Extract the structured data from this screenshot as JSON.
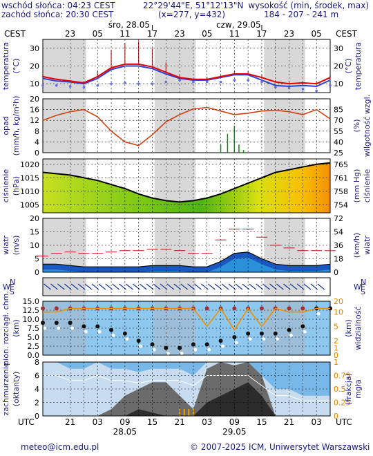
{
  "header": {
    "sunrise": "wschód słońca: 04:23 CEST",
    "sunset": "zachód słońca: 20:30 CEST",
    "coords": "22°29'44\"E, 51°12'13\"N",
    "grid": "(x=277, y=432)",
    "elev_label": "wysokość (min, środek, max)",
    "elev_values": "184 - 207 - 241 m"
  },
  "timezones": {
    "top": "CEST",
    "bottom": "UTC"
  },
  "dates_top": [
    {
      "label": "śro, 28.05",
      "hour": 12
    },
    {
      "label": "czw, 29.05",
      "hour": 36
    }
  ],
  "dates_bottom": [
    {
      "label": "28.05",
      "hour": 12
    },
    {
      "label": "29.05",
      "hour": 36
    }
  ],
  "hours_top": [
    "23",
    "05",
    "11",
    "17",
    "23",
    "05",
    "11",
    "17",
    "23",
    "05"
  ],
  "hours_bottom": [
    "21",
    "03",
    "09",
    "15",
    "21",
    "03",
    "09",
    "15",
    "21",
    "03"
  ],
  "footer": {
    "email": "meteo@icm.edu.pl",
    "copyright": "© 2007-2025 ICM, Uniwersytet Warszawski"
  },
  "colors": {
    "temp": "#e00000",
    "dew": "#2020c0",
    "humidity": "#d04010",
    "precip": "#009000",
    "text": "#1a1a80",
    "night_band": "#d8d8d8"
  },
  "chart_data": [
    {
      "type": "line",
      "name": "temperature",
      "ylabel": "temperatura (°C)",
      "ylim": [
        5,
        35
      ],
      "yticks": [
        10,
        20,
        30
      ],
      "x": [
        -6,
        -3,
        0,
        3,
        6,
        9,
        12,
        15,
        18,
        21,
        24,
        27,
        30,
        33,
        36,
        39,
        42,
        45,
        48,
        51,
        54,
        57
      ],
      "series": [
        {
          "values": [
            14,
            12.5,
            11.5,
            10.5,
            14,
            19,
            21,
            21,
            19.5,
            16.5,
            13.5,
            12.5,
            12.5,
            14,
            15.5,
            15.5,
            13.5,
            11,
            10,
            10.5,
            10,
            13.5
          ]
        },
        {
          "values": [
            13,
            11.5,
            11,
            10,
            13,
            18,
            20,
            20,
            18.5,
            15.5,
            13,
            12,
            12,
            13.5,
            15,
            15,
            12,
            9,
            8.5,
            9,
            8.5,
            12
          ]
        }
      ],
      "dew": [
        9,
        9,
        8.5,
        8,
        9,
        10,
        10.5,
        10,
        10,
        11,
        12,
        11,
        11,
        11,
        12,
        12,
        11,
        8,
        7.5,
        7,
        6,
        9
      ],
      "max": [
        15,
        13,
        12,
        11,
        17,
        29,
        33,
        34,
        30,
        22,
        15,
        13,
        14,
        15,
        17,
        17,
        15,
        12,
        11,
        11,
        11,
        15
      ]
    },
    {
      "type": "line",
      "name": "precip-humidity",
      "ylabel": "opad (mm/h, kg/m²h)",
      "ylabel_right": "wilgotność wzgl. (%)",
      "ylim": [
        0,
        20
      ],
      "yticks": [
        0,
        4,
        8,
        12,
        16,
        20
      ],
      "yticks_right": [
        25,
        40,
        55,
        70,
        85
      ],
      "x": [
        -6,
        -3,
        0,
        3,
        6,
        9,
        12,
        15,
        18,
        21,
        24,
        27,
        30,
        33,
        36,
        39,
        42,
        45,
        48,
        51,
        54,
        57
      ],
      "humidity": [
        70,
        77,
        82,
        85,
        75,
        55,
        40,
        35,
        50,
        68,
        78,
        86,
        88,
        83,
        78,
        80,
        83,
        84,
        82,
        78,
        85,
        72
      ],
      "precip_bars": [
        {
          "x": 33,
          "v": 3
        },
        {
          "x": 34.5,
          "v": 7
        },
        {
          "x": 36,
          "v": 10
        },
        {
          "x": 37,
          "v": 3
        },
        {
          "x": 38,
          "v": 1
        }
      ]
    },
    {
      "type": "area",
      "name": "pressure",
      "ylabel": "ciśnienie (hPa)",
      "ylabel_right": "(mm Hg)",
      "ylim": [
        1002,
        1022
      ],
      "yticks": [
        1005,
        1010,
        1015,
        1020
      ],
      "yticks_right": [
        754,
        758,
        761,
        765
      ],
      "x": [
        -6,
        -3,
        0,
        3,
        6,
        9,
        12,
        15,
        18,
        21,
        24,
        27,
        30,
        33,
        36,
        39,
        42,
        45,
        48,
        51,
        54,
        57
      ],
      "values": [
        1017,
        1016.5,
        1016,
        1015,
        1014,
        1012.5,
        1011,
        1009,
        1007.5,
        1006.5,
        1006,
        1006.5,
        1007.5,
        1009,
        1011,
        1013,
        1015,
        1017,
        1018,
        1019,
        1020,
        1020.5
      ]
    },
    {
      "type": "area",
      "name": "wind",
      "ylabel": "wiatr (m/s)",
      "ylabel_right": "(km/h)",
      "ylim": [
        0,
        20
      ],
      "yticks": [
        0,
        5,
        10,
        15,
        20
      ],
      "yticks_right": [
        0,
        18,
        36,
        54,
        72
      ],
      "x": [
        -6,
        -3,
        0,
        3,
        6,
        9,
        12,
        15,
        18,
        21,
        24,
        27,
        30,
        33,
        36,
        39,
        42,
        45,
        48,
        51,
        54,
        57
      ],
      "speed": [
        3,
        3,
        2.5,
        2,
        2,
        2,
        2,
        2,
        2.5,
        2.5,
        2.5,
        2,
        2,
        4,
        7,
        7.5,
        5,
        3,
        2.5,
        2.5,
        2.5,
        3
      ],
      "gust": [
        6,
        7,
        7.5,
        7,
        7,
        7.5,
        8,
        8,
        8.5,
        8.5,
        8,
        7,
        7,
        12,
        16,
        16,
        13,
        10,
        9,
        8,
        8,
        8
      ]
    },
    {
      "type": "scatter",
      "name": "wind-direction",
      "ylabel": "N S W E"
    },
    {
      "type": "scatter",
      "name": "cloudbase-visibility",
      "ylabel": "pion. rozciągł. chm. (km)",
      "ylabel_right": "widzialność (km)",
      "ylim": [
        0,
        15
      ],
      "yticks": [
        0,
        2.5,
        5,
        7.5,
        10,
        12.5,
        15
      ],
      "yticks_right": [
        0,
        1,
        2,
        5,
        10,
        20
      ],
      "x": [
        -6,
        -3,
        0,
        3,
        6,
        9,
        12,
        15,
        18,
        21,
        24,
        27,
        30,
        33,
        36,
        39,
        42,
        45,
        48,
        51,
        54,
        57
      ],
      "visibility": [
        12,
        12,
        13,
        13,
        13,
        13,
        13,
        13,
        13,
        13,
        13,
        13,
        8,
        13,
        7,
        13,
        8,
        13,
        12,
        12,
        13,
        13
      ],
      "cloud_top": [
        13,
        13,
        13,
        13,
        13,
        13,
        13,
        13,
        13,
        13,
        13,
        13,
        13,
        13,
        13,
        13,
        13,
        13,
        13,
        13,
        13,
        13
      ],
      "cloud_base": [
        9,
        9,
        9,
        8,
        8,
        7,
        6,
        4,
        3,
        2,
        2,
        3,
        3,
        4,
        5,
        6,
        6,
        6,
        7,
        8,
        13,
        13
      ]
    },
    {
      "type": "area",
      "name": "cloudiness-fog",
      "ylabel": "zachmurzenie (oktanty)",
      "ylabel_right": "(frakcja) mgła",
      "ylim": [
        0,
        8
      ],
      "yticks": [
        0,
        2,
        4,
        6,
        8
      ],
      "yticks_right": [
        0,
        0.25,
        0.5,
        0.75,
        1
      ],
      "x": [
        -6,
        -3,
        0,
        3,
        6,
        9,
        12,
        15,
        18,
        21,
        24,
        27,
        30,
        33,
        36,
        39,
        42,
        45,
        48,
        51,
        54,
        57
      ],
      "total": [
        8,
        8,
        7,
        7,
        8,
        7,
        7,
        6.5,
        7,
        7,
        7,
        6,
        8,
        8,
        8,
        8,
        6,
        4,
        4,
        3,
        3,
        3
      ],
      "high": [
        0,
        0,
        0,
        0,
        0,
        1,
        3,
        4,
        5,
        5,
        3,
        1,
        7,
        8,
        7.5,
        8,
        6,
        0,
        0,
        0,
        0,
        0
      ],
      "low": [
        0,
        0,
        0,
        0,
        0,
        0,
        0,
        1,
        0.5,
        0,
        0,
        0,
        2,
        3,
        4,
        5,
        3,
        0,
        0,
        0,
        0,
        0
      ]
    }
  ]
}
